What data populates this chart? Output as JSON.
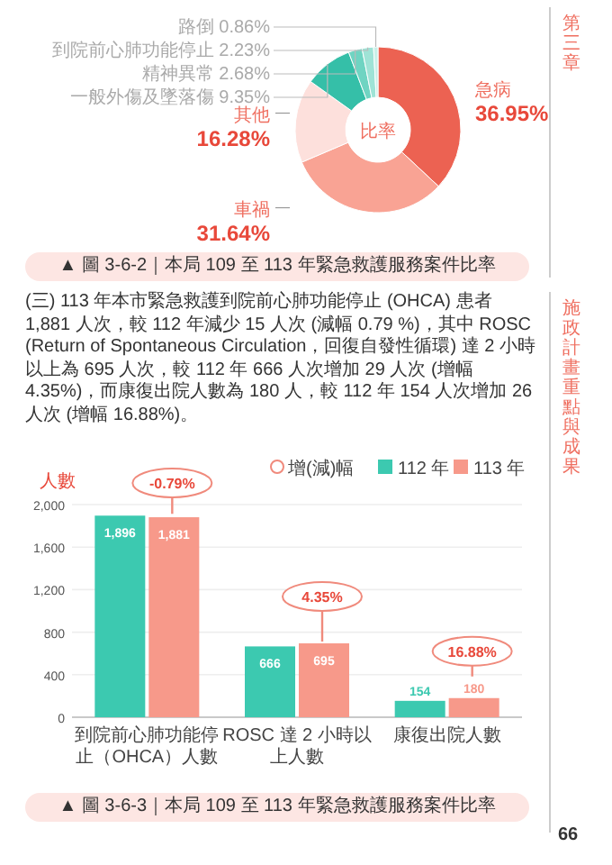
{
  "chart_data": [
    {
      "type": "donut",
      "title": "▲ 圖 3-6-2｜本局 109 至 113 年緊急救護服務案件比率",
      "categories": [
        "急病",
        "車禍",
        "其他",
        "一般外傷及墜落傷",
        "精神異常",
        "到院前心肺功能停止",
        "路倒"
      ],
      "values": [
        36.95,
        31.64,
        16.28,
        9.35,
        2.68,
        2.23,
        0.86
      ],
      "colors": [
        "#ec6252",
        "#f9a394",
        "#fde0dc",
        "#35bfa8",
        "#6fd4c2",
        "#9fe3d6",
        "#c9f0e8"
      ],
      "value_labels": [
        "36.95%",
        "31.64%",
        "16.28%",
        "9.35%",
        "2.68%",
        "2.23%",
        "0.86%"
      ],
      "annotations": [
        "比率",
        "第三章",
        "施政計畫重點與成果",
        "66"
      ]
    },
    {
      "type": "bar",
      "title": "▲ 圖 3-6-3｜本局 109 至 113 年緊急救護服務案件比率",
      "ylabel": "人數",
      "categories": [
        "到院前心肺功能停止（OHCA）人數",
        "ROSC 達 2 小時以上人數",
        "康復出院人數"
      ],
      "series": [
        {
          "name": "112 年",
          "color": "#3cc9b0",
          "values": [
            1896,
            666,
            154
          ],
          "value_labels": [
            "1,896",
            "666",
            "154"
          ]
        },
        {
          "name": "113 年",
          "color": "#f7998a",
          "values": [
            1881,
            695,
            180
          ],
          "value_labels": [
            "1,881",
            "695",
            "180"
          ]
        }
      ],
      "ylim": [
        0,
        2000
      ],
      "yticks": [
        0,
        400,
        800,
        {
          "value": 1200,
          "label": "1,200"
        },
        {
          "value": 1600,
          "label": "1,600"
        },
        {
          "value": 2000,
          "label": "2,000"
        }
      ],
      "grid": "y",
      "legend": "top right",
      "annotations": [
        "(三) 113 年本市緊急救護到院前心肺功能停止 (OHCA) 患者 1,881 人次，較 112 年減少 15 人次 (減幅 0.79 %)，其中 ROSC (Return of Spontaneous Circulation，回復自發性循環) 達 2 小時以上為 695 人次，較 112 年 666 人次增加 29 人次 (增幅 4.35%)，而康復出院人數為 180 人，較 112 年 154 人次增加 26 人次 (增幅 16.88%)。",
        "增(減)幅",
        "-0.79%",
        "4.35%",
        "16.88%"
      ]
    }
  ]
}
